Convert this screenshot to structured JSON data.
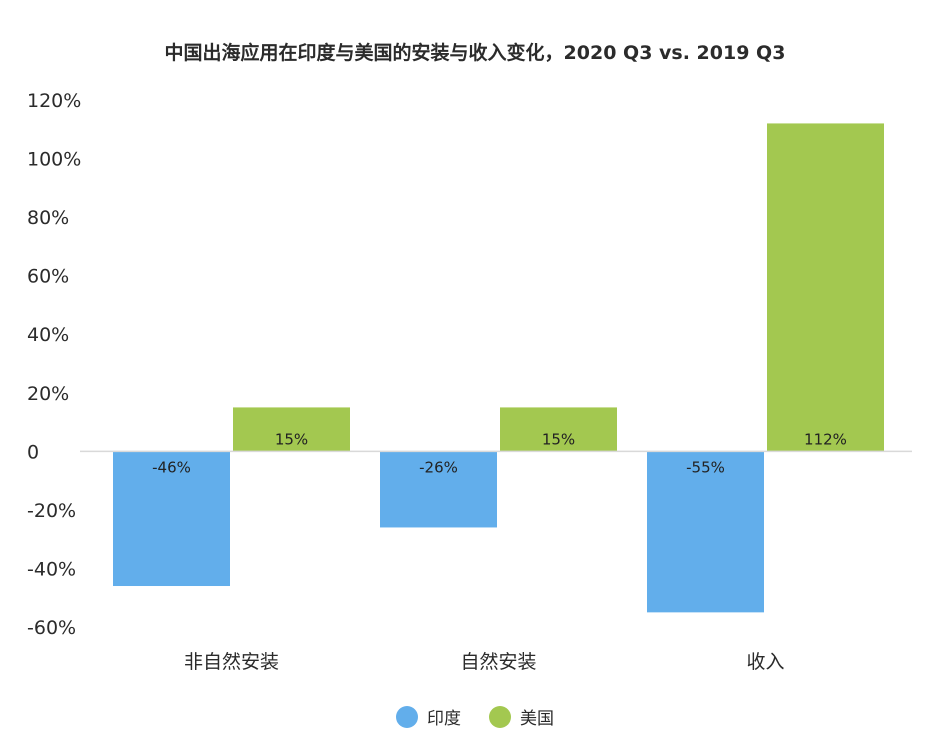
{
  "chart_data": {
    "type": "bar",
    "title": "中国出海应用在印度与美国的安装与收入变化，2020 Q3 vs. 2019 Q3",
    "categories": [
      "非自然安装",
      "自然安装",
      "收入"
    ],
    "series": [
      {
        "name": "印度",
        "color": "#62aeeb",
        "values": [
          -46,
          -26,
          -55
        ],
        "labels": [
          "-46%",
          "-26%",
          "-55%"
        ]
      },
      {
        "name": "美国",
        "color": "#a3c850",
        "values": [
          15,
          15,
          112
        ],
        "labels": [
          "15%",
          "15%",
          "112%"
        ]
      }
    ],
    "ylim": [
      -60,
      120
    ],
    "yticks": [
      120,
      100,
      80,
      60,
      40,
      20,
      0,
      -20,
      -40,
      -60
    ],
    "ytick_labels": [
      "120%",
      "100%",
      "80%",
      "60%",
      "40%",
      "20%",
      "0",
      "-20%",
      "-40%",
      "-60%"
    ],
    "grid": false,
    "legend_position": "bottom-center"
  }
}
